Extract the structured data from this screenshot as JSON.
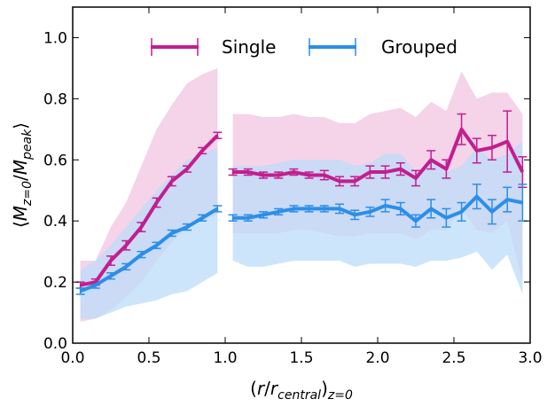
{
  "chart_data": {
    "type": "line",
    "xlabel": "(r/r_central)_z=0",
    "ylabel": "⟨M_z=0/M_peak⟩",
    "xlim": [
      0.0,
      3.0
    ],
    "ylim": [
      0.0,
      1.1
    ],
    "xticks": [
      "0.0",
      "0.5",
      "1.0",
      "1.5",
      "2.0",
      "2.5",
      "3.0"
    ],
    "yticks": [
      "0.0",
      "0.2",
      "0.4",
      "0.6",
      "0.8",
      "1.0"
    ],
    "legend_position": "top-center",
    "grid": false,
    "series": [
      {
        "name": "Single",
        "color": "#c21e8f",
        "band_color": "#f2c4e2",
        "segments": [
          {
            "x": [
              0.05,
              0.15,
              0.25,
              0.35,
              0.45,
              0.55,
              0.65,
              0.75,
              0.85,
              0.95
            ],
            "y": [
              0.19,
              0.2,
              0.27,
              0.32,
              0.38,
              0.46,
              0.53,
              0.57,
              0.63,
              0.68
            ],
            "err": [
              0.01,
              0.01,
              0.015,
              0.015,
              0.015,
              0.015,
              0.015,
              0.01,
              0.01,
              0.01
            ],
            "band_low": [
              0.07,
              0.08,
              0.11,
              0.15,
              0.2,
              0.27,
              0.33,
              0.38,
              0.4,
              0.42
            ],
            "band_high": [
              0.27,
              0.27,
              0.38,
              0.46,
              0.58,
              0.7,
              0.78,
              0.85,
              0.88,
              0.9
            ]
          },
          {
            "x": [
              1.05,
              1.15,
              1.25,
              1.35,
              1.45,
              1.55,
              1.65,
              1.75,
              1.85,
              1.95,
              2.05,
              2.15,
              2.25,
              2.35,
              2.45,
              2.55,
              2.65,
              2.75,
              2.85,
              2.95
            ],
            "y": [
              0.56,
              0.56,
              0.55,
              0.55,
              0.56,
              0.55,
              0.55,
              0.53,
              0.53,
              0.56,
              0.56,
              0.57,
              0.54,
              0.6,
              0.57,
              0.7,
              0.63,
              0.64,
              0.66,
              0.56
            ],
            "err": [
              0.01,
              0.01,
              0.01,
              0.01,
              0.01,
              0.01,
              0.015,
              0.015,
              0.015,
              0.02,
              0.02,
              0.02,
              0.025,
              0.03,
              0.03,
              0.05,
              0.04,
              0.04,
              0.1,
              0.05
            ],
            "band_low": [
              0.36,
              0.36,
              0.36,
              0.36,
              0.37,
              0.37,
              0.36,
              0.35,
              0.35,
              0.36,
              0.36,
              0.36,
              0.34,
              0.37,
              0.37,
              0.44,
              0.37,
              0.36,
              0.4,
              0.2
            ],
            "band_high": [
              0.75,
              0.75,
              0.74,
              0.74,
              0.75,
              0.74,
              0.74,
              0.72,
              0.72,
              0.75,
              0.76,
              0.77,
              0.74,
              0.79,
              0.76,
              0.89,
              0.8,
              0.82,
              0.82,
              0.75
            ]
          }
        ]
      },
      {
        "name": "Grouped",
        "color": "#2b8fe8",
        "band_color": "#bcdcf8",
        "segments": [
          {
            "x": [
              0.05,
              0.15,
              0.25,
              0.35,
              0.45,
              0.55,
              0.65,
              0.75,
              0.85,
              0.95
            ],
            "y": [
              0.17,
              0.19,
              0.22,
              0.25,
              0.29,
              0.32,
              0.36,
              0.38,
              0.41,
              0.44
            ],
            "err": [
              0.01,
              0.01,
              0.01,
              0.01,
              0.01,
              0.01,
              0.01,
              0.01,
              0.01,
              0.01
            ],
            "band_low": [
              0.08,
              0.08,
              0.1,
              0.12,
              0.13,
              0.14,
              0.16,
              0.17,
              0.2,
              0.23
            ],
            "band_high": [
              0.24,
              0.27,
              0.32,
              0.38,
              0.44,
              0.5,
              0.55,
              0.6,
              0.62,
              0.64
            ]
          },
          {
            "x": [
              1.05,
              1.15,
              1.25,
              1.35,
              1.45,
              1.55,
              1.65,
              1.75,
              1.85,
              1.95,
              2.05,
              2.15,
              2.25,
              2.35,
              2.45,
              2.55,
              2.65,
              2.75,
              2.85,
              2.95
            ],
            "y": [
              0.41,
              0.41,
              0.42,
              0.43,
              0.44,
              0.44,
              0.44,
              0.44,
              0.42,
              0.43,
              0.45,
              0.44,
              0.4,
              0.44,
              0.41,
              0.43,
              0.48,
              0.43,
              0.47,
              0.46
            ],
            "err": [
              0.01,
              0.01,
              0.01,
              0.01,
              0.01,
              0.01,
              0.01,
              0.015,
              0.015,
              0.015,
              0.02,
              0.02,
              0.02,
              0.03,
              0.03,
              0.03,
              0.04,
              0.04,
              0.04,
              0.06
            ],
            "band_low": [
              0.27,
              0.25,
              0.25,
              0.26,
              0.27,
              0.27,
              0.27,
              0.27,
              0.25,
              0.26,
              0.26,
              0.26,
              0.25,
              0.27,
              0.27,
              0.28,
              0.3,
              0.24,
              0.29,
              0.16
            ],
            "band_high": [
              0.58,
              0.58,
              0.58,
              0.59,
              0.6,
              0.6,
              0.6,
              0.6,
              0.58,
              0.59,
              0.62,
              0.62,
              0.56,
              0.6,
              0.56,
              0.58,
              0.64,
              0.6,
              0.62,
              0.66
            ]
          }
        ]
      }
    ]
  }
}
